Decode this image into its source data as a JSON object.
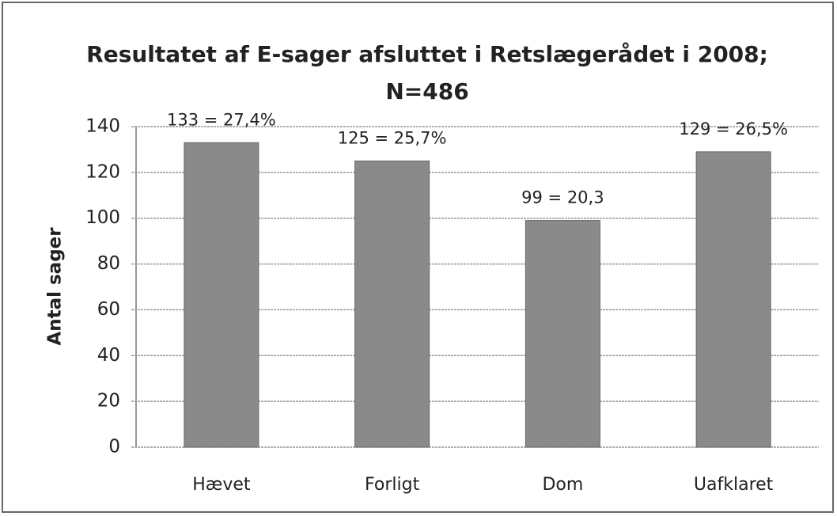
{
  "chart_data": {
    "type": "bar",
    "title": [
      "Resultatet af E-sager afsluttet i Retslægerådet i 2008;",
      "N=486"
    ],
    "y_label": "Antal sager",
    "categories": [
      "Hævet",
      "Forligt",
      "Dom",
      "Uafklaret"
    ],
    "values": [
      133,
      125,
      99,
      129
    ],
    "value_labels": [
      "133 = 27,4%",
      "125 = 25,7%",
      "99 = 20,3",
      "129 = 26,5%"
    ],
    "color": "#8a8a8a",
    "ylim": [
      0,
      140
    ],
    "yticks": [
      0,
      20,
      40,
      60,
      80,
      100,
      120,
      140
    ],
    "grid": true
  }
}
